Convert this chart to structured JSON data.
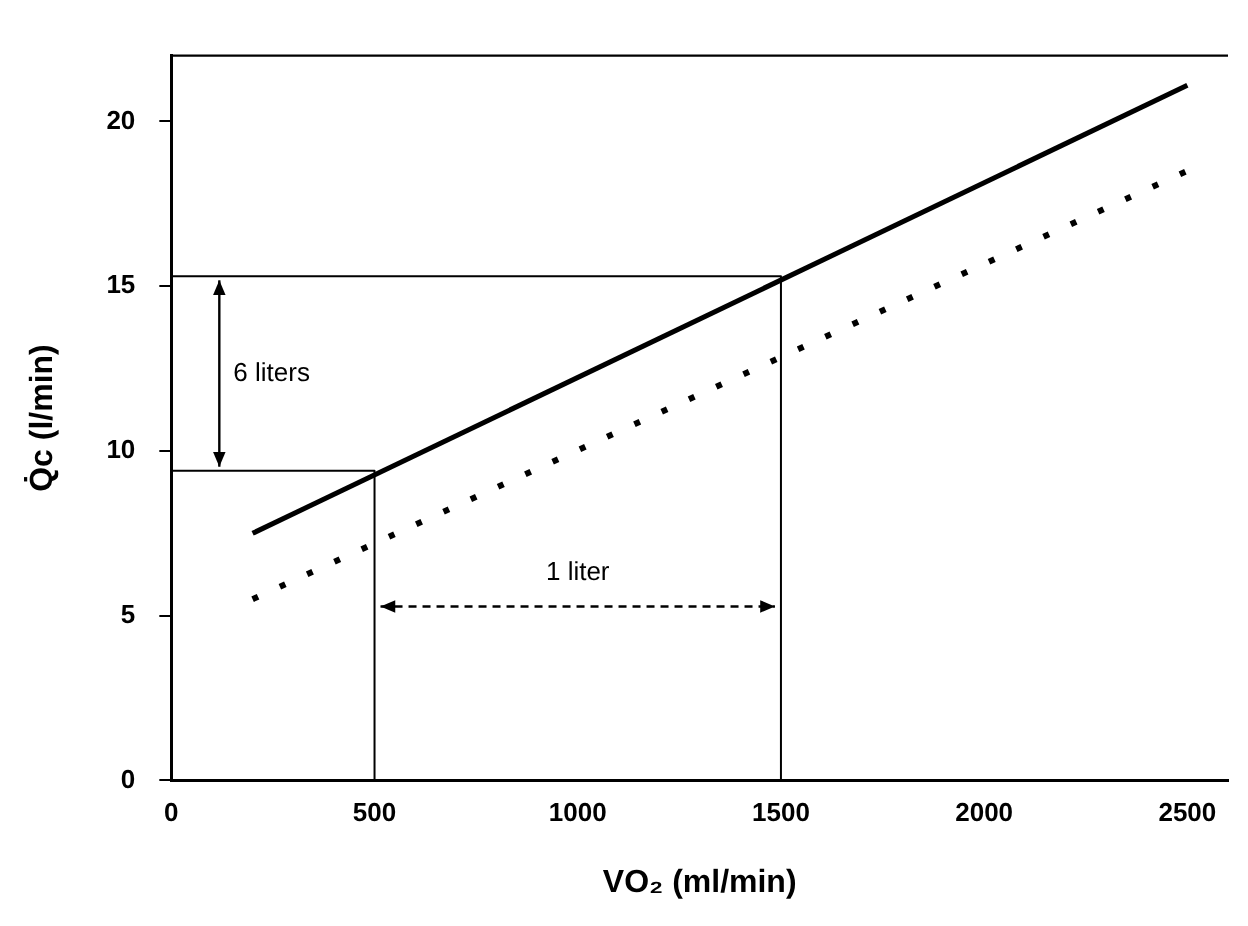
{
  "chart_data": {
    "type": "line",
    "xlabel": "VO₂ (ml/min)",
    "ylabel": "Q̇c (l/min)",
    "xlim": [
      0,
      2600
    ],
    "xticks": [
      0,
      500,
      1000,
      1500,
      2000,
      2500
    ],
    "ylim": [
      0,
      22
    ],
    "yticks": [
      0,
      5,
      10,
      15,
      20
    ],
    "grid": false,
    "legend": false,
    "marker": "none",
    "series": [
      {
        "color": "#000000",
        "x": [
          200,
          2500
        ],
        "values": [
          7.5,
          21.1
        ],
        "line_style": "solid"
      },
      {
        "color": "#000000",
        "x": [
          200,
          2500
        ],
        "values": [
          5.5,
          18.5
        ],
        "line_style": "dotted"
      },
      {
        "color": "#000000",
        "x": [
          0,
          500,
          500
        ],
        "values": [
          9.4,
          9.4,
          0
        ],
        "line_style": "solid"
      },
      {
        "color": "#000000",
        "x": [
          0,
          1500,
          1500
        ],
        "values": [
          15.3,
          15.3,
          0
        ],
        "line_style": "solid"
      }
    ],
    "annotations": [
      "6 liters",
      "1 liter"
    ]
  }
}
